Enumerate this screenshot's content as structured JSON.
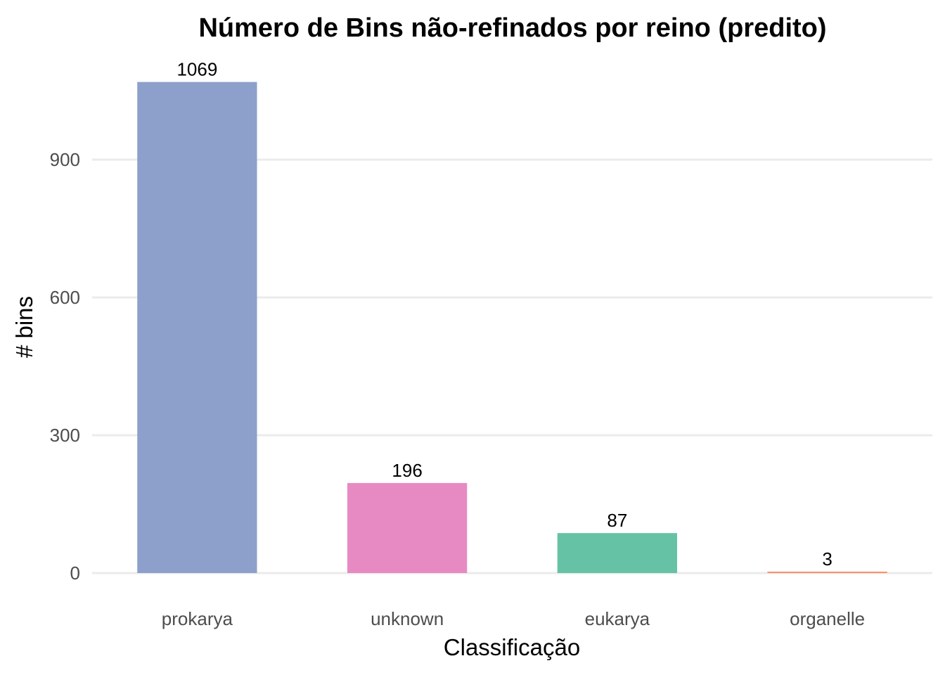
{
  "chart_data": {
    "type": "bar",
    "title": "Número de Bins não-refinados por reino (predito)",
    "xlabel": "Classificação",
    "ylabel": "# bins",
    "categories": [
      "prokarya",
      "unknown",
      "eukarya",
      "organelle"
    ],
    "values": [
      1069,
      196,
      87,
      3
    ],
    "data_labels": [
      "1069",
      "196",
      "87",
      "3"
    ],
    "colors": [
      "#8da0cb",
      "#e78ac3",
      "#66c2a5",
      "#fc8d62"
    ],
    "y_ticks": [
      0,
      300,
      600,
      900
    ],
    "y_tick_labels": [
      "0",
      "300",
      "600",
      "900"
    ],
    "ylim": [
      0,
      1069
    ],
    "grid": true,
    "legend": "none"
  }
}
